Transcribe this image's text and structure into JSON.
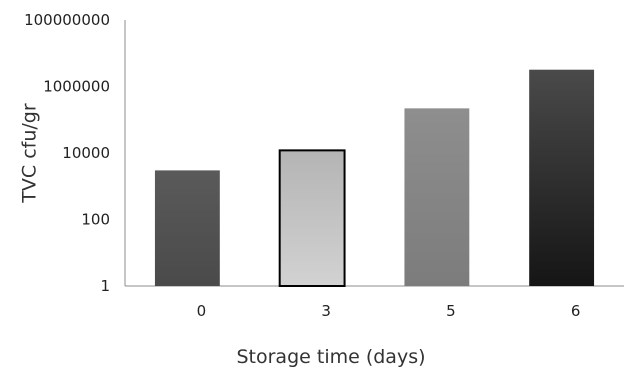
{
  "chart_data": {
    "type": "bar",
    "title": "",
    "xlabel": "Storage time (days)",
    "ylabel": "TVC cfu/gr",
    "yscale": "log",
    "ylim": [
      1,
      100000000
    ],
    "yticks": [
      "1",
      "100",
      "10000",
      "1000000",
      "100000000"
    ],
    "categories": [
      "0",
      "3",
      "5",
      "6"
    ],
    "values": [
      3000,
      12000,
      220000,
      3200000
    ],
    "bar_styles": [
      {
        "fill": "gradient-dark-gray",
        "stroke": "none"
      },
      {
        "fill": "gradient-light-gray",
        "stroke": "#000000"
      },
      {
        "fill": "gradient-mid-gray",
        "stroke": "none"
      },
      {
        "fill": "gradient-black",
        "stroke": "none"
      }
    ],
    "grid": false,
    "legend": "none"
  }
}
